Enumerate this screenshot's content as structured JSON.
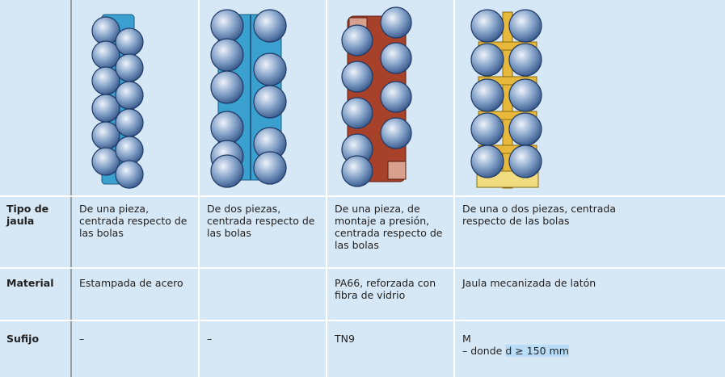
{
  "table": {
    "rows": [
      [
        "Tipo de jaula",
        "De una pieza, centrada respecto de las bolas",
        "De dos piezas, centrada respecto de las bolas",
        "De una pieza, de montaje a presión, centrada respecto de las bolas",
        "De una o dos piezas, centrada respecto de las bolas"
      ],
      [
        "Material",
        "Estampada de acero",
        "PA66, reforzada con fibra de vidrio",
        "Jaula mecanizada de latón"
      ],
      [
        "Sufijo",
        "–",
        "–",
        "TN9",
        "M",
        "– donde ",
        "d ≥ 150 mm"
      ]
    ]
  }
}
